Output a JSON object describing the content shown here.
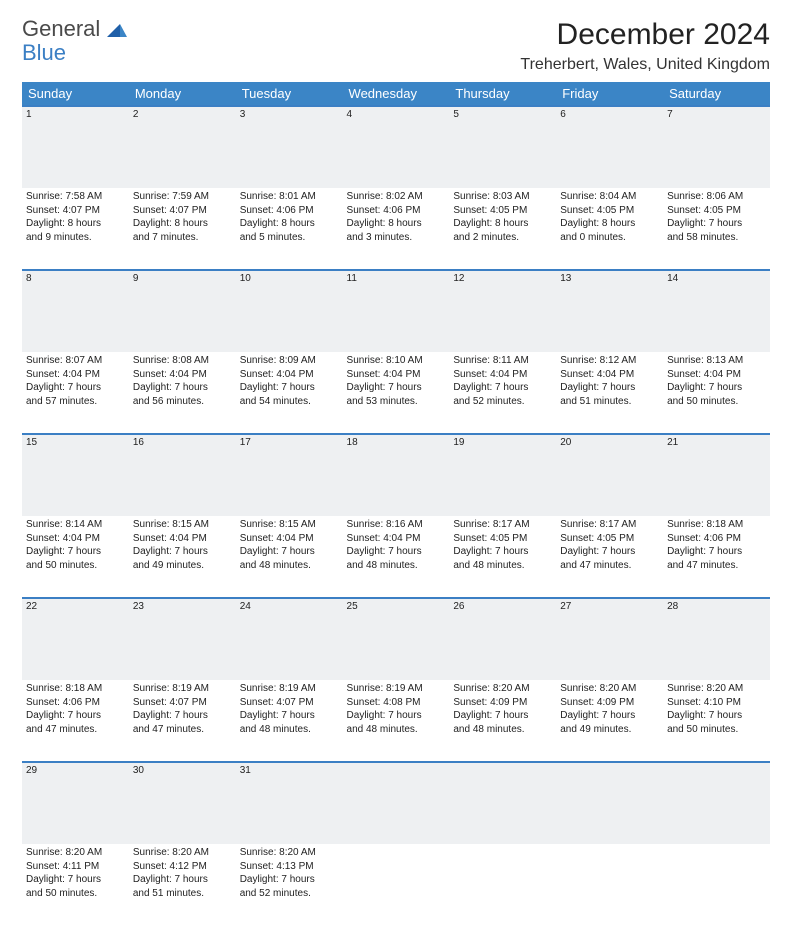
{
  "brand": {
    "word1": "General",
    "word2": "Blue",
    "color1": "#4a4a4a",
    "color2": "#3b7fc4"
  },
  "header": {
    "title": "December 2024",
    "location": "Treherbert, Wales, United Kingdom"
  },
  "colors": {
    "header_bg": "#3b85c6",
    "header_text": "#ffffff",
    "row_border": "#3b7fc4",
    "daynum_bg": "#eef0f2",
    "page_bg": "#ffffff",
    "text": "#222222"
  },
  "weekdays": [
    "Sunday",
    "Monday",
    "Tuesday",
    "Wednesday",
    "Thursday",
    "Friday",
    "Saturday"
  ],
  "weeks": [
    [
      {
        "n": "1",
        "sr": "Sunrise: 7:58 AM",
        "ss": "Sunset: 4:07 PM",
        "d1": "Daylight: 8 hours",
        "d2": "and 9 minutes."
      },
      {
        "n": "2",
        "sr": "Sunrise: 7:59 AM",
        "ss": "Sunset: 4:07 PM",
        "d1": "Daylight: 8 hours",
        "d2": "and 7 minutes."
      },
      {
        "n": "3",
        "sr": "Sunrise: 8:01 AM",
        "ss": "Sunset: 4:06 PM",
        "d1": "Daylight: 8 hours",
        "d2": "and 5 minutes."
      },
      {
        "n": "4",
        "sr": "Sunrise: 8:02 AM",
        "ss": "Sunset: 4:06 PM",
        "d1": "Daylight: 8 hours",
        "d2": "and 3 minutes."
      },
      {
        "n": "5",
        "sr": "Sunrise: 8:03 AM",
        "ss": "Sunset: 4:05 PM",
        "d1": "Daylight: 8 hours",
        "d2": "and 2 minutes."
      },
      {
        "n": "6",
        "sr": "Sunrise: 8:04 AM",
        "ss": "Sunset: 4:05 PM",
        "d1": "Daylight: 8 hours",
        "d2": "and 0 minutes."
      },
      {
        "n": "7",
        "sr": "Sunrise: 8:06 AM",
        "ss": "Sunset: 4:05 PM",
        "d1": "Daylight: 7 hours",
        "d2": "and 58 minutes."
      }
    ],
    [
      {
        "n": "8",
        "sr": "Sunrise: 8:07 AM",
        "ss": "Sunset: 4:04 PM",
        "d1": "Daylight: 7 hours",
        "d2": "and 57 minutes."
      },
      {
        "n": "9",
        "sr": "Sunrise: 8:08 AM",
        "ss": "Sunset: 4:04 PM",
        "d1": "Daylight: 7 hours",
        "d2": "and 56 minutes."
      },
      {
        "n": "10",
        "sr": "Sunrise: 8:09 AM",
        "ss": "Sunset: 4:04 PM",
        "d1": "Daylight: 7 hours",
        "d2": "and 54 minutes."
      },
      {
        "n": "11",
        "sr": "Sunrise: 8:10 AM",
        "ss": "Sunset: 4:04 PM",
        "d1": "Daylight: 7 hours",
        "d2": "and 53 minutes."
      },
      {
        "n": "12",
        "sr": "Sunrise: 8:11 AM",
        "ss": "Sunset: 4:04 PM",
        "d1": "Daylight: 7 hours",
        "d2": "and 52 minutes."
      },
      {
        "n": "13",
        "sr": "Sunrise: 8:12 AM",
        "ss": "Sunset: 4:04 PM",
        "d1": "Daylight: 7 hours",
        "d2": "and 51 minutes."
      },
      {
        "n": "14",
        "sr": "Sunrise: 8:13 AM",
        "ss": "Sunset: 4:04 PM",
        "d1": "Daylight: 7 hours",
        "d2": "and 50 minutes."
      }
    ],
    [
      {
        "n": "15",
        "sr": "Sunrise: 8:14 AM",
        "ss": "Sunset: 4:04 PM",
        "d1": "Daylight: 7 hours",
        "d2": "and 50 minutes."
      },
      {
        "n": "16",
        "sr": "Sunrise: 8:15 AM",
        "ss": "Sunset: 4:04 PM",
        "d1": "Daylight: 7 hours",
        "d2": "and 49 minutes."
      },
      {
        "n": "17",
        "sr": "Sunrise: 8:15 AM",
        "ss": "Sunset: 4:04 PM",
        "d1": "Daylight: 7 hours",
        "d2": "and 48 minutes."
      },
      {
        "n": "18",
        "sr": "Sunrise: 8:16 AM",
        "ss": "Sunset: 4:04 PM",
        "d1": "Daylight: 7 hours",
        "d2": "and 48 minutes."
      },
      {
        "n": "19",
        "sr": "Sunrise: 8:17 AM",
        "ss": "Sunset: 4:05 PM",
        "d1": "Daylight: 7 hours",
        "d2": "and 48 minutes."
      },
      {
        "n": "20",
        "sr": "Sunrise: 8:17 AM",
        "ss": "Sunset: 4:05 PM",
        "d1": "Daylight: 7 hours",
        "d2": "and 47 minutes."
      },
      {
        "n": "21",
        "sr": "Sunrise: 8:18 AM",
        "ss": "Sunset: 4:06 PM",
        "d1": "Daylight: 7 hours",
        "d2": "and 47 minutes."
      }
    ],
    [
      {
        "n": "22",
        "sr": "Sunrise: 8:18 AM",
        "ss": "Sunset: 4:06 PM",
        "d1": "Daylight: 7 hours",
        "d2": "and 47 minutes."
      },
      {
        "n": "23",
        "sr": "Sunrise: 8:19 AM",
        "ss": "Sunset: 4:07 PM",
        "d1": "Daylight: 7 hours",
        "d2": "and 47 minutes."
      },
      {
        "n": "24",
        "sr": "Sunrise: 8:19 AM",
        "ss": "Sunset: 4:07 PM",
        "d1": "Daylight: 7 hours",
        "d2": "and 48 minutes."
      },
      {
        "n": "25",
        "sr": "Sunrise: 8:19 AM",
        "ss": "Sunset: 4:08 PM",
        "d1": "Daylight: 7 hours",
        "d2": "and 48 minutes."
      },
      {
        "n": "26",
        "sr": "Sunrise: 8:20 AM",
        "ss": "Sunset: 4:09 PM",
        "d1": "Daylight: 7 hours",
        "d2": "and 48 minutes."
      },
      {
        "n": "27",
        "sr": "Sunrise: 8:20 AM",
        "ss": "Sunset: 4:09 PM",
        "d1": "Daylight: 7 hours",
        "d2": "and 49 minutes."
      },
      {
        "n": "28",
        "sr": "Sunrise: 8:20 AM",
        "ss": "Sunset: 4:10 PM",
        "d1": "Daylight: 7 hours",
        "d2": "and 50 minutes."
      }
    ],
    [
      {
        "n": "29",
        "sr": "Sunrise: 8:20 AM",
        "ss": "Sunset: 4:11 PM",
        "d1": "Daylight: 7 hours",
        "d2": "and 50 minutes."
      },
      {
        "n": "30",
        "sr": "Sunrise: 8:20 AM",
        "ss": "Sunset: 4:12 PM",
        "d1": "Daylight: 7 hours",
        "d2": "and 51 minutes."
      },
      {
        "n": "31",
        "sr": "Sunrise: 8:20 AM",
        "ss": "Sunset: 4:13 PM",
        "d1": "Daylight: 7 hours",
        "d2": "and 52 minutes."
      },
      null,
      null,
      null,
      null
    ]
  ]
}
